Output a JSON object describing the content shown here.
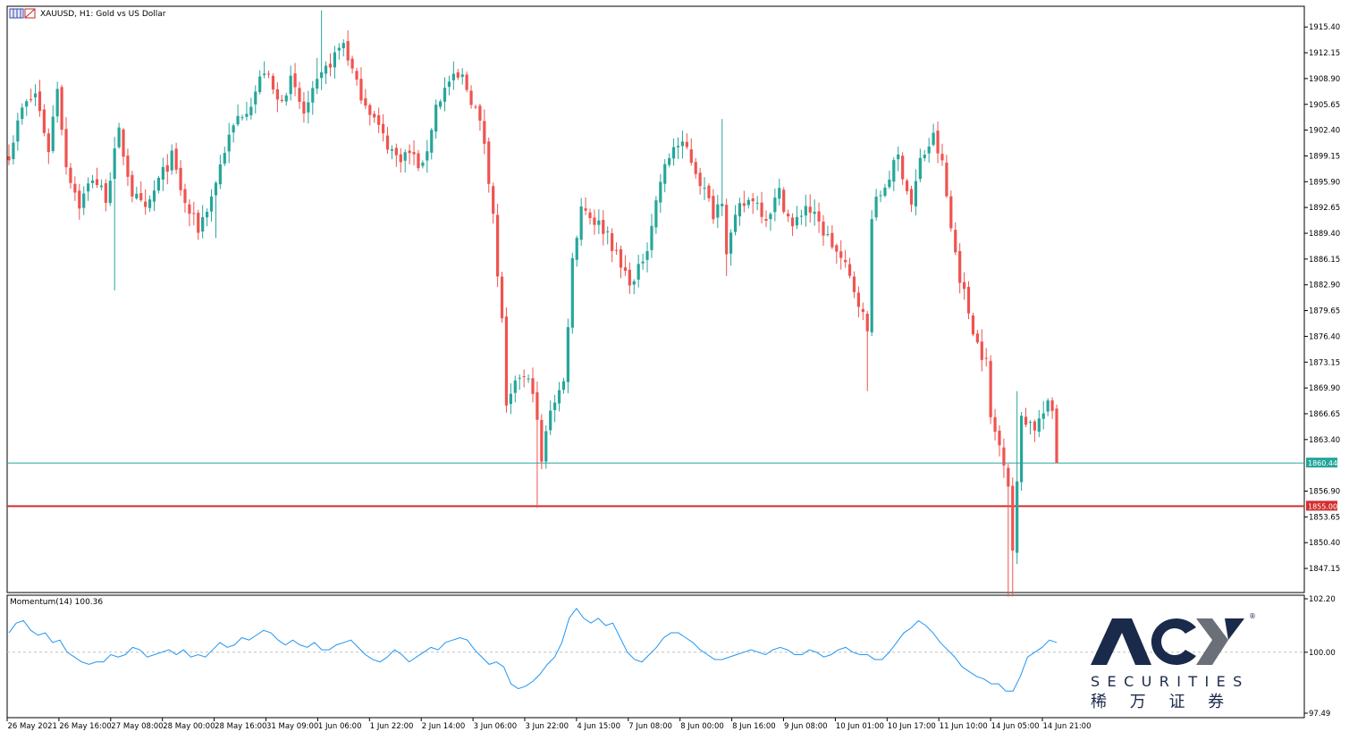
{
  "window": {
    "title": "XAUUSD, H1:  Gold vs US Dollar",
    "indicator_title": "Momentum(14) 100.36"
  },
  "colors": {
    "bull": "#26a69a",
    "bear": "#ef5350",
    "momentum": "#2196f3",
    "support_line": "#d32f2f",
    "current_price": "#26a69a",
    "frame": "#000000",
    "grid_dotted": "#c0c0c0"
  },
  "logo": {
    "brand": "ACY",
    "sub": "SECURITIES",
    "cn": "稀 万 证 券",
    "registered": "®"
  },
  "chart_data": [
    {
      "type": "candlestick",
      "symbol": "XAUUSD",
      "timeframe": "H1",
      "title": "XAUUSD, H1:  Gold vs US Dollar",
      "y_ticks": [
        "1915.40",
        "1912.15",
        "1908.90",
        "1905.65",
        "1902.40",
        "1899.15",
        "1895.90",
        "1892.65",
        "1889.40",
        "1886.15",
        "1882.90",
        "1879.65",
        "1876.40",
        "1873.15",
        "1869.90",
        "1866.65",
        "1863.40",
        "1856.90",
        "1853.65",
        "1850.40",
        "1847.15"
      ],
      "ylim": [
        1843.0,
        1917.8
      ],
      "x_ticks": [
        "26 May 2021",
        "26 May 16:00",
        "27 May 08:00",
        "28 May 00:00",
        "28 May 16:00",
        "31 May 09:00",
        "1 Jun 06:00",
        "1 Jun 22:00",
        "2 Jun 14:00",
        "3 Jun 06:00",
        "3 Jun 22:00",
        "4 Jun 15:00",
        "7 Jun 08:00",
        "8 Jun 00:00",
        "8 Jun 16:00",
        "9 Jun 08:00",
        "10 Jun 01:00",
        "10 Jun 17:00",
        "11 Jun 10:00",
        "14 Jun 05:00",
        "14 Jun 21:00"
      ],
      "price_anchors": [
        [
          0,
          1899.5
        ],
        [
          3,
          1905.0
        ],
        [
          6,
          1907.0
        ],
        [
          9,
          1900.0
        ],
        [
          11,
          1908.0
        ],
        [
          13,
          1898.0
        ],
        [
          16,
          1893.0
        ],
        [
          19,
          1896.5
        ],
        [
          22,
          1894.0
        ],
        [
          25,
          1902.0
        ],
        [
          28,
          1894.5
        ],
        [
          31,
          1892.0
        ],
        [
          34,
          1896.0
        ],
        [
          37,
          1899.0
        ],
        [
          40,
          1893.0
        ],
        [
          43,
          1890.0
        ],
        [
          46,
          1894.0
        ],
        [
          49,
          1900.0
        ],
        [
          52,
          1904.0
        ],
        [
          55,
          1906.0
        ],
        [
          58,
          1910.0
        ],
        [
          61,
          1906.0
        ],
        [
          64,
          1908.5
        ],
        [
          67,
          1904.5
        ],
        [
          70,
          1908.0
        ],
        [
          73,
          1911.0
        ],
        [
          76,
          1913.5
        ],
        [
          79,
          1908.0
        ],
        [
          82,
          1905.0
        ],
        [
          85,
          1901.5
        ],
        [
          88,
          1899.0
        ],
        [
          91,
          1899.5
        ],
        [
          94,
          1897.5
        ],
        [
          97,
          1905.5
        ],
        [
          100,
          1908.5
        ],
        [
          103,
          1909.0
        ],
        [
          106,
          1905.0
        ],
        [
          108,
          1901.0
        ],
        [
          110,
          1892.0
        ],
        [
          111,
          1883.5
        ],
        [
          112,
          1879.0
        ],
        [
          113,
          1867.0
        ],
        [
          116,
          1871.5
        ],
        [
          119,
          1870.0
        ],
        [
          121,
          1860.5
        ],
        [
          123,
          1867.5
        ],
        [
          126,
          1870.5
        ],
        [
          128,
          1886.0
        ],
        [
          130,
          1893.0
        ],
        [
          133,
          1891.0
        ],
        [
          136,
          1889.5
        ],
        [
          139,
          1885.0
        ],
        [
          142,
          1883.0
        ],
        [
          145,
          1888.0
        ],
        [
          148,
          1896.0
        ],
        [
          151,
          1900.5
        ],
        [
          154,
          1900.0
        ],
        [
          157,
          1896.0
        ],
        [
          160,
          1892.0
        ],
        [
          162,
          1894.0
        ],
        [
          163,
          1887.5
        ],
        [
          166,
          1892.5
        ],
        [
          169,
          1894.0
        ],
        [
          172,
          1891.5
        ],
        [
          175,
          1894.5
        ],
        [
          178,
          1890.0
        ],
        [
          181,
          1893.0
        ],
        [
          184,
          1890.5
        ],
        [
          187,
          1888.0
        ],
        [
          190,
          1885.0
        ],
        [
          193,
          1881.0
        ],
        [
          195,
          1876.8
        ],
        [
          196,
          1892.0
        ],
        [
          199,
          1895.5
        ],
        [
          202,
          1899.0
        ],
        [
          205,
          1893.0
        ],
        [
          207,
          1898.5
        ],
        [
          210,
          1901.5
        ],
        [
          212,
          1898.0
        ],
        [
          214,
          1890.0
        ],
        [
          216,
          1884.0
        ],
        [
          218,
          1879.5
        ],
        [
          220,
          1875.5
        ],
        [
          222,
          1873.0
        ],
        [
          223,
          1866.0
        ],
        [
          226,
          1861.0
        ],
        [
          227,
          1858.0
        ],
        [
          228,
          1849.5
        ],
        [
          229,
          1857.5
        ],
        [
          230,
          1866.5
        ],
        [
          233,
          1865.0
        ],
        [
          236,
          1867.5
        ],
        [
          237,
          1867.0
        ],
        [
          238,
          1860.5
        ]
      ],
      "special_bars": [
        {
          "index": 24,
          "low": 1882.2
        },
        {
          "index": 47,
          "low": 1888.8
        },
        {
          "index": 70,
          "high": 1911.5
        },
        {
          "index": 71,
          "high": 1917.5
        },
        {
          "index": 120,
          "low": 1854.8
        },
        {
          "index": 162,
          "high": 1903.8
        },
        {
          "index": 163,
          "low": 1884.0
        },
        {
          "index": 195,
          "low": 1869.5
        },
        {
          "index": 210,
          "high": 1903.2
        },
        {
          "index": 227,
          "low": 1843.6
        },
        {
          "index": 228,
          "low": 1843.6
        },
        {
          "index": 229,
          "high": 1869.5
        }
      ],
      "horizontal_lines": [
        {
          "price": 1855.0,
          "label": "1855.00",
          "role": "support"
        },
        {
          "price": 1860.44,
          "label": "1860.44",
          "role": "current"
        }
      ]
    },
    {
      "type": "line",
      "name": "Momentum(14)",
      "current": 100.36,
      "y_ticks": [
        "102.20",
        "100.00",
        "97.49"
      ],
      "ylim": [
        97.49,
        102.2
      ],
      "reference": 100.0,
      "values": [
        100.8,
        101.2,
        101.3,
        100.9,
        100.7,
        100.8,
        100.4,
        100.5,
        100.0,
        99.8,
        99.6,
        99.5,
        99.6,
        99.6,
        99.9,
        99.8,
        99.9,
        100.2,
        100.1,
        99.8,
        99.9,
        100.0,
        100.1,
        99.9,
        100.1,
        99.8,
        99.9,
        99.8,
        100.1,
        100.4,
        100.2,
        100.3,
        100.6,
        100.5,
        100.7,
        100.9,
        100.8,
        100.5,
        100.3,
        100.5,
        100.3,
        100.2,
        100.4,
        100.1,
        100.1,
        100.3,
        100.4,
        100.5,
        100.2,
        99.9,
        99.7,
        99.6,
        99.8,
        100.1,
        99.9,
        99.6,
        99.8,
        100.0,
        100.2,
        100.1,
        100.4,
        100.5,
        100.6,
        100.5,
        100.1,
        99.8,
        99.5,
        99.6,
        99.4,
        98.7,
        98.5,
        98.6,
        98.8,
        99.1,
        99.5,
        99.8,
        100.4,
        101.4,
        101.8,
        101.4,
        101.2,
        101.4,
        101.1,
        101.2,
        100.6,
        100.0,
        99.7,
        99.6,
        99.9,
        100.2,
        100.6,
        100.8,
        100.8,
        100.6,
        100.4,
        100.1,
        99.9,
        99.7,
        99.7,
        99.8,
        99.9,
        100.0,
        100.1,
        100.0,
        99.9,
        100.1,
        100.2,
        100.1,
        99.9,
        99.9,
        100.1,
        100.0,
        99.8,
        99.9,
        100.1,
        100.2,
        100.0,
        99.9,
        99.9,
        99.7,
        99.7,
        100.0,
        100.4,
        100.8,
        101.0,
        101.3,
        101.1,
        100.8,
        100.4,
        100.1,
        99.8,
        99.4,
        99.2,
        99.0,
        98.9,
        98.7,
        98.7,
        98.4,
        98.4,
        99.0,
        99.8,
        100.0,
        100.2,
        100.5,
        100.4
      ]
    }
  ]
}
